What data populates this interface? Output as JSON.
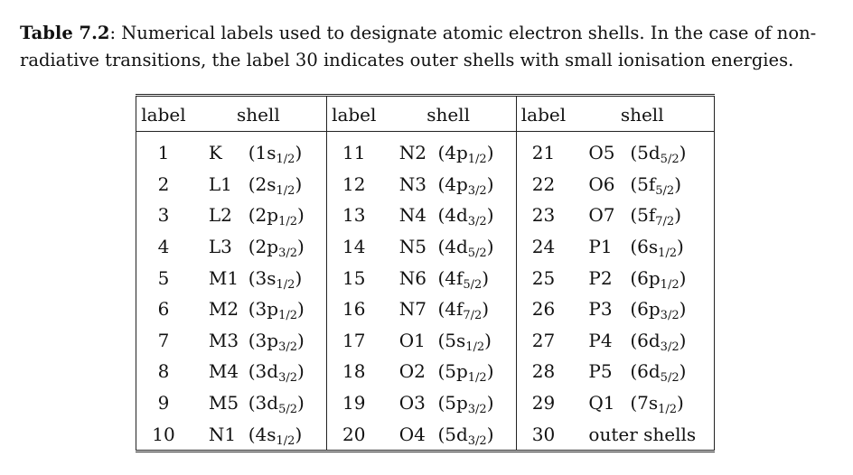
{
  "caption": {
    "label": "Table 7.2",
    "text": ": Numerical labels used to designate atomic electron shells. In the case of non-radiative transitions, the label 30 indicates outer shells with small ionisation energies."
  },
  "table": {
    "headers": [
      "label",
      "shell",
      "label",
      "shell",
      "label",
      "shell"
    ],
    "rows": [
      [
        {
          "label": "1",
          "name": "K",
          "orb": "(1s",
          "sub": "1/2"
        },
        {
          "label": "11",
          "name": "N2",
          "orb": "(4p",
          "sub": "1/2"
        },
        {
          "label": "21",
          "name": "O5",
          "orb": "(5d",
          "sub": "5/2"
        }
      ],
      [
        {
          "label": "2",
          "name": "L1",
          "orb": "(2s",
          "sub": "1/2"
        },
        {
          "label": "12",
          "name": "N3",
          "orb": "(4p",
          "sub": "3/2"
        },
        {
          "label": "22",
          "name": "O6",
          "orb": "(5f",
          "sub": "5/2"
        }
      ],
      [
        {
          "label": "3",
          "name": "L2",
          "orb": "(2p",
          "sub": "1/2"
        },
        {
          "label": "13",
          "name": "N4",
          "orb": "(4d",
          "sub": "3/2"
        },
        {
          "label": "23",
          "name": "O7",
          "orb": "(5f",
          "sub": "7/2"
        }
      ],
      [
        {
          "label": "4",
          "name": "L3",
          "orb": "(2p",
          "sub": "3/2"
        },
        {
          "label": "14",
          "name": "N5",
          "orb": "(4d",
          "sub": "5/2"
        },
        {
          "label": "24",
          "name": "P1",
          "orb": "(6s",
          "sub": "1/2"
        }
      ],
      [
        {
          "label": "5",
          "name": "M1",
          "orb": "(3s",
          "sub": "1/2"
        },
        {
          "label": "15",
          "name": "N6",
          "orb": "(4f",
          "sub": "5/2"
        },
        {
          "label": "25",
          "name": "P2",
          "orb": "(6p",
          "sub": "1/2"
        }
      ],
      [
        {
          "label": "6",
          "name": "M2",
          "orb": "(3p",
          "sub": "1/2"
        },
        {
          "label": "16",
          "name": "N7",
          "orb": "(4f",
          "sub": "7/2"
        },
        {
          "label": "26",
          "name": "P3",
          "orb": "(6p",
          "sub": "3/2"
        }
      ],
      [
        {
          "label": "7",
          "name": "M3",
          "orb": "(3p",
          "sub": "3/2"
        },
        {
          "label": "17",
          "name": "O1",
          "orb": "(5s",
          "sub": "1/2"
        },
        {
          "label": "27",
          "name": "P4",
          "orb": "(6d",
          "sub": "3/2"
        }
      ],
      [
        {
          "label": "8",
          "name": "M4",
          "orb": "(3d",
          "sub": "3/2"
        },
        {
          "label": "18",
          "name": "O2",
          "orb": "(5p",
          "sub": "1/2"
        },
        {
          "label": "28",
          "name": "P5",
          "orb": "(6d",
          "sub": "5/2"
        }
      ],
      [
        {
          "label": "9",
          "name": "M5",
          "orb": "(3d",
          "sub": "5/2"
        },
        {
          "label": "19",
          "name": "O3",
          "orb": "(5p",
          "sub": "3/2"
        },
        {
          "label": "29",
          "name": "Q1",
          "orb": "(7s",
          "sub": "1/2"
        }
      ],
      [
        {
          "label": "10",
          "name": "N1",
          "orb": "(4s",
          "sub": "1/2"
        },
        {
          "label": "20",
          "name": "O4",
          "orb": "(5d",
          "sub": "3/2"
        },
        {
          "label": "30",
          "full": "outer shells"
        }
      ]
    ]
  }
}
